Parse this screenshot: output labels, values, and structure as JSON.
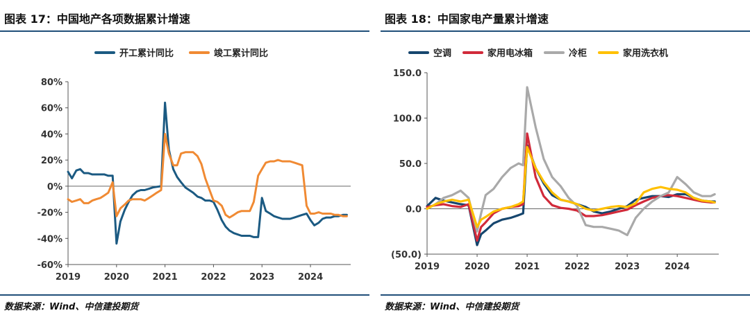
{
  "left": {
    "title": "图表 17：中国地产各项数据累计增速",
    "source": "数据来源：Wind、中信建投期货",
    "legend": [
      {
        "name": "开工累计同比",
        "color": "#1b5a82"
      },
      {
        "name": "竣工累计同比",
        "color": "#f08a33"
      }
    ]
  },
  "right": {
    "title": "图表 18：中国家电产量累计增速",
    "source": "数据来源：Wind、中信建投期货",
    "legend": [
      {
        "name": "空调",
        "color": "#16466e"
      },
      {
        "name": "家用电冰箱",
        "color": "#d12a3a"
      },
      {
        "name": "冷柜",
        "color": "#a9a9a9"
      },
      {
        "name": "家用洗衣机",
        "color": "#ffc000"
      }
    ]
  },
  "chart_data": [
    {
      "type": "line",
      "title": "图表 17：中国地产各项数据累计增速",
      "xlabel": "",
      "ylabel": "",
      "x_ticks": [
        "2019",
        "2020",
        "2021",
        "2022",
        "2023",
        "2024"
      ],
      "xlim": [
        2019.0,
        2024.83
      ],
      "ylim": [
        -60,
        80
      ],
      "y_ticks": [
        -60,
        -40,
        -20,
        0,
        20,
        40,
        60,
        80
      ],
      "y_tick_labels": [
        "-60%",
        "-40%",
        "-20%",
        "0%",
        "20%",
        "40%",
        "60%",
        "80%"
      ],
      "zero_line": true,
      "grid": false,
      "legend_position": "top",
      "series": [
        {
          "name": "开工累计同比",
          "color": "#1b5a82",
          "x": [
            2019.0,
            2019.08,
            2019.17,
            2019.25,
            2019.33,
            2019.42,
            2019.5,
            2019.58,
            2019.67,
            2019.75,
            2019.83,
            2019.92,
            2020.0,
            2020.08,
            2020.17,
            2020.25,
            2020.33,
            2020.42,
            2020.5,
            2020.58,
            2020.67,
            2020.75,
            2020.83,
            2020.92,
            2021.0,
            2021.08,
            2021.17,
            2021.25,
            2021.33,
            2021.42,
            2021.5,
            2021.58,
            2021.67,
            2021.75,
            2021.83,
            2021.92,
            2022.0,
            2022.08,
            2022.17,
            2022.25,
            2022.33,
            2022.42,
            2022.5,
            2022.58,
            2022.67,
            2022.75,
            2022.83,
            2022.92,
            2023.0,
            2023.08,
            2023.17,
            2023.25,
            2023.33,
            2023.42,
            2023.5,
            2023.58,
            2023.67,
            2023.75,
            2023.83,
            2023.92,
            2024.0,
            2024.08,
            2024.17,
            2024.25,
            2024.33,
            2024.42,
            2024.5,
            2024.58,
            2024.67,
            2024.75
          ],
          "y": [
            11,
            6,
            12,
            13,
            10,
            10,
            9,
            9,
            9,
            9,
            8,
            8,
            -44,
            -27,
            -18,
            -12,
            -7,
            -4,
            -3,
            -3,
            -2,
            -1,
            -0.5,
            0,
            64,
            28,
            13,
            7,
            3,
            -1,
            -3,
            -5,
            -8,
            -9,
            -11,
            -11,
            -12,
            -18,
            -26,
            -31,
            -34,
            -36,
            -37,
            -38,
            -38,
            -38,
            -39,
            -39,
            -9,
            -19,
            -21,
            -23,
            -24,
            -25,
            -25,
            -25,
            -24,
            -23,
            -22,
            -21,
            -26,
            -30,
            -28,
            -25,
            -24,
            -24,
            -23,
            -23,
            -22,
            -22
          ]
        },
        {
          "name": "竣工累计同比",
          "color": "#f08a33",
          "x": [
            2019.0,
            2019.08,
            2019.17,
            2019.25,
            2019.33,
            2019.42,
            2019.5,
            2019.58,
            2019.67,
            2019.75,
            2019.83,
            2019.92,
            2020.0,
            2020.08,
            2020.17,
            2020.25,
            2020.33,
            2020.42,
            2020.5,
            2020.58,
            2020.67,
            2020.75,
            2020.83,
            2020.92,
            2021.0,
            2021.08,
            2021.17,
            2021.25,
            2021.33,
            2021.42,
            2021.5,
            2021.58,
            2021.67,
            2021.75,
            2021.83,
            2021.92,
            2022.0,
            2022.08,
            2022.17,
            2022.25,
            2022.33,
            2022.42,
            2022.5,
            2022.58,
            2022.67,
            2022.75,
            2022.83,
            2022.92,
            2023.0,
            2023.08,
            2023.17,
            2023.25,
            2023.33,
            2023.42,
            2023.5,
            2023.58,
            2023.67,
            2023.75,
            2023.83,
            2023.92,
            2024.0,
            2024.08,
            2024.17,
            2024.25,
            2024.33,
            2024.42,
            2024.5,
            2024.58,
            2024.67,
            2024.75
          ],
          "y": [
            -10,
            -12,
            -11,
            -10,
            -13,
            -13,
            -11,
            -10,
            -9,
            -7,
            -5,
            3,
            -23,
            -17,
            -14,
            -11,
            -10,
            -10,
            -10,
            -11,
            -9,
            -7,
            -5,
            -3,
            40,
            25,
            16,
            16,
            25,
            26,
            26,
            26,
            23,
            17,
            6,
            -3,
            -11,
            -12,
            -15,
            -22,
            -24,
            -22,
            -20,
            -19,
            -19,
            -19,
            -12,
            8,
            13,
            18,
            19,
            19,
            20,
            19,
            19,
            19,
            18,
            17,
            16,
            -15,
            -21,
            -21,
            -20,
            -21,
            -21,
            -21,
            -22,
            -22,
            -23,
            -23
          ]
        }
      ]
    },
    {
      "type": "line",
      "title": "图表 18：中国家电产量累计增速",
      "xlabel": "",
      "ylabel": "",
      "x_ticks": [
        "2019",
        "2020",
        "2021",
        "2022",
        "2023",
        "2024"
      ],
      "xlim": [
        2019.0,
        2024.83
      ],
      "ylim": [
        -50,
        150
      ],
      "y_ticks": [
        -50,
        0,
        50,
        100,
        150
      ],
      "y_tick_labels": [
        "(50.0)",
        "0.0",
        "50.0",
        "100.0",
        "150.0"
      ],
      "zero_line": true,
      "grid": false,
      "legend_position": "top",
      "series": [
        {
          "name": "空调",
          "color": "#16466e",
          "x": [
            2019.0,
            2019.17,
            2019.33,
            2019.5,
            2019.67,
            2019.83,
            2020.0,
            2020.08,
            2020.17,
            2020.33,
            2020.5,
            2020.67,
            2020.83,
            2020.92,
            2021.0,
            2021.17,
            2021.33,
            2021.5,
            2021.67,
            2021.83,
            2022.0,
            2022.17,
            2022.33,
            2022.5,
            2022.67,
            2022.83,
            2023.0,
            2023.17,
            2023.33,
            2023.5,
            2023.67,
            2023.83,
            2024.0,
            2024.17,
            2024.33,
            2024.5,
            2024.67,
            2024.75
          ],
          "y": [
            3,
            12,
            9,
            7,
            5,
            4,
            -40,
            -28,
            -24,
            -16,
            -12,
            -10,
            -7,
            -5,
            70,
            45,
            28,
            15,
            10,
            8,
            5,
            2,
            -3,
            -5,
            -3,
            0,
            3,
            10,
            12,
            14,
            14,
            13,
            16,
            16,
            12,
            9,
            8,
            8
          ]
        },
        {
          "name": "家用电冰箱",
          "color": "#d12a3a",
          "x": [
            2019.0,
            2019.17,
            2019.33,
            2019.5,
            2019.67,
            2019.83,
            2020.0,
            2020.08,
            2020.17,
            2020.33,
            2020.5,
            2020.67,
            2020.83,
            2020.92,
            2021.0,
            2021.17,
            2021.33,
            2021.5,
            2021.67,
            2021.83,
            2022.0,
            2022.17,
            2022.33,
            2022.5,
            2022.67,
            2022.83,
            2023.0,
            2023.17,
            2023.33,
            2023.5,
            2023.67,
            2023.83,
            2024.0,
            2024.17,
            2024.33,
            2024.5,
            2024.67,
            2024.75
          ],
          "y": [
            2,
            4,
            5,
            3,
            2,
            5,
            -35,
            -20,
            -15,
            -5,
            0,
            2,
            3,
            5,
            83,
            35,
            14,
            4,
            1,
            0,
            -2,
            -8,
            -8,
            -7,
            -5,
            -3,
            -1,
            4,
            8,
            12,
            14,
            15,
            14,
            12,
            10,
            8,
            7,
            7
          ]
        },
        {
          "name": "冷柜",
          "color": "#a9a9a9",
          "x": [
            2019.0,
            2019.17,
            2019.33,
            2019.5,
            2019.67,
            2019.83,
            2020.0,
            2020.08,
            2020.17,
            2020.33,
            2020.5,
            2020.67,
            2020.83,
            2020.92,
            2021.0,
            2021.17,
            2021.33,
            2021.5,
            2021.67,
            2021.83,
            2022.0,
            2022.17,
            2022.33,
            2022.5,
            2022.67,
            2022.83,
            2023.0,
            2023.17,
            2023.33,
            2023.5,
            2023.67,
            2023.83,
            2024.0,
            2024.17,
            2024.33,
            2024.5,
            2024.67,
            2024.75
          ],
          "y": [
            0,
            5,
            12,
            15,
            20,
            12,
            -25,
            -5,
            15,
            22,
            35,
            45,
            50,
            48,
            134,
            90,
            55,
            35,
            25,
            12,
            3,
            -18,
            -20,
            -20,
            -22,
            -24,
            -29,
            -10,
            0,
            8,
            14,
            18,
            35,
            27,
            18,
            14,
            14,
            16
          ]
        },
        {
          "name": "家用洗衣机",
          "color": "#ffc000",
          "x": [
            2019.0,
            2019.17,
            2019.33,
            2019.5,
            2019.67,
            2019.83,
            2020.0,
            2020.08,
            2020.17,
            2020.33,
            2020.5,
            2020.67,
            2020.83,
            2020.92,
            2021.0,
            2021.17,
            2021.33,
            2021.5,
            2021.67,
            2021.83,
            2022.0,
            2022.17,
            2022.33,
            2022.5,
            2022.67,
            2022.83,
            2023.0,
            2023.17,
            2023.33,
            2023.5,
            2023.67,
            2023.83,
            2024.0,
            2024.17,
            2024.33,
            2024.5,
            2024.67,
            2024.75
          ],
          "y": [
            0,
            5,
            8,
            10,
            8,
            10,
            -20,
            -12,
            -9,
            -3,
            0,
            2,
            5,
            8,
            68,
            45,
            30,
            18,
            10,
            8,
            5,
            0,
            -2,
            0,
            2,
            3,
            2,
            6,
            18,
            22,
            24,
            22,
            21,
            18,
            12,
            9,
            8,
            7
          ]
        }
      ]
    }
  ]
}
